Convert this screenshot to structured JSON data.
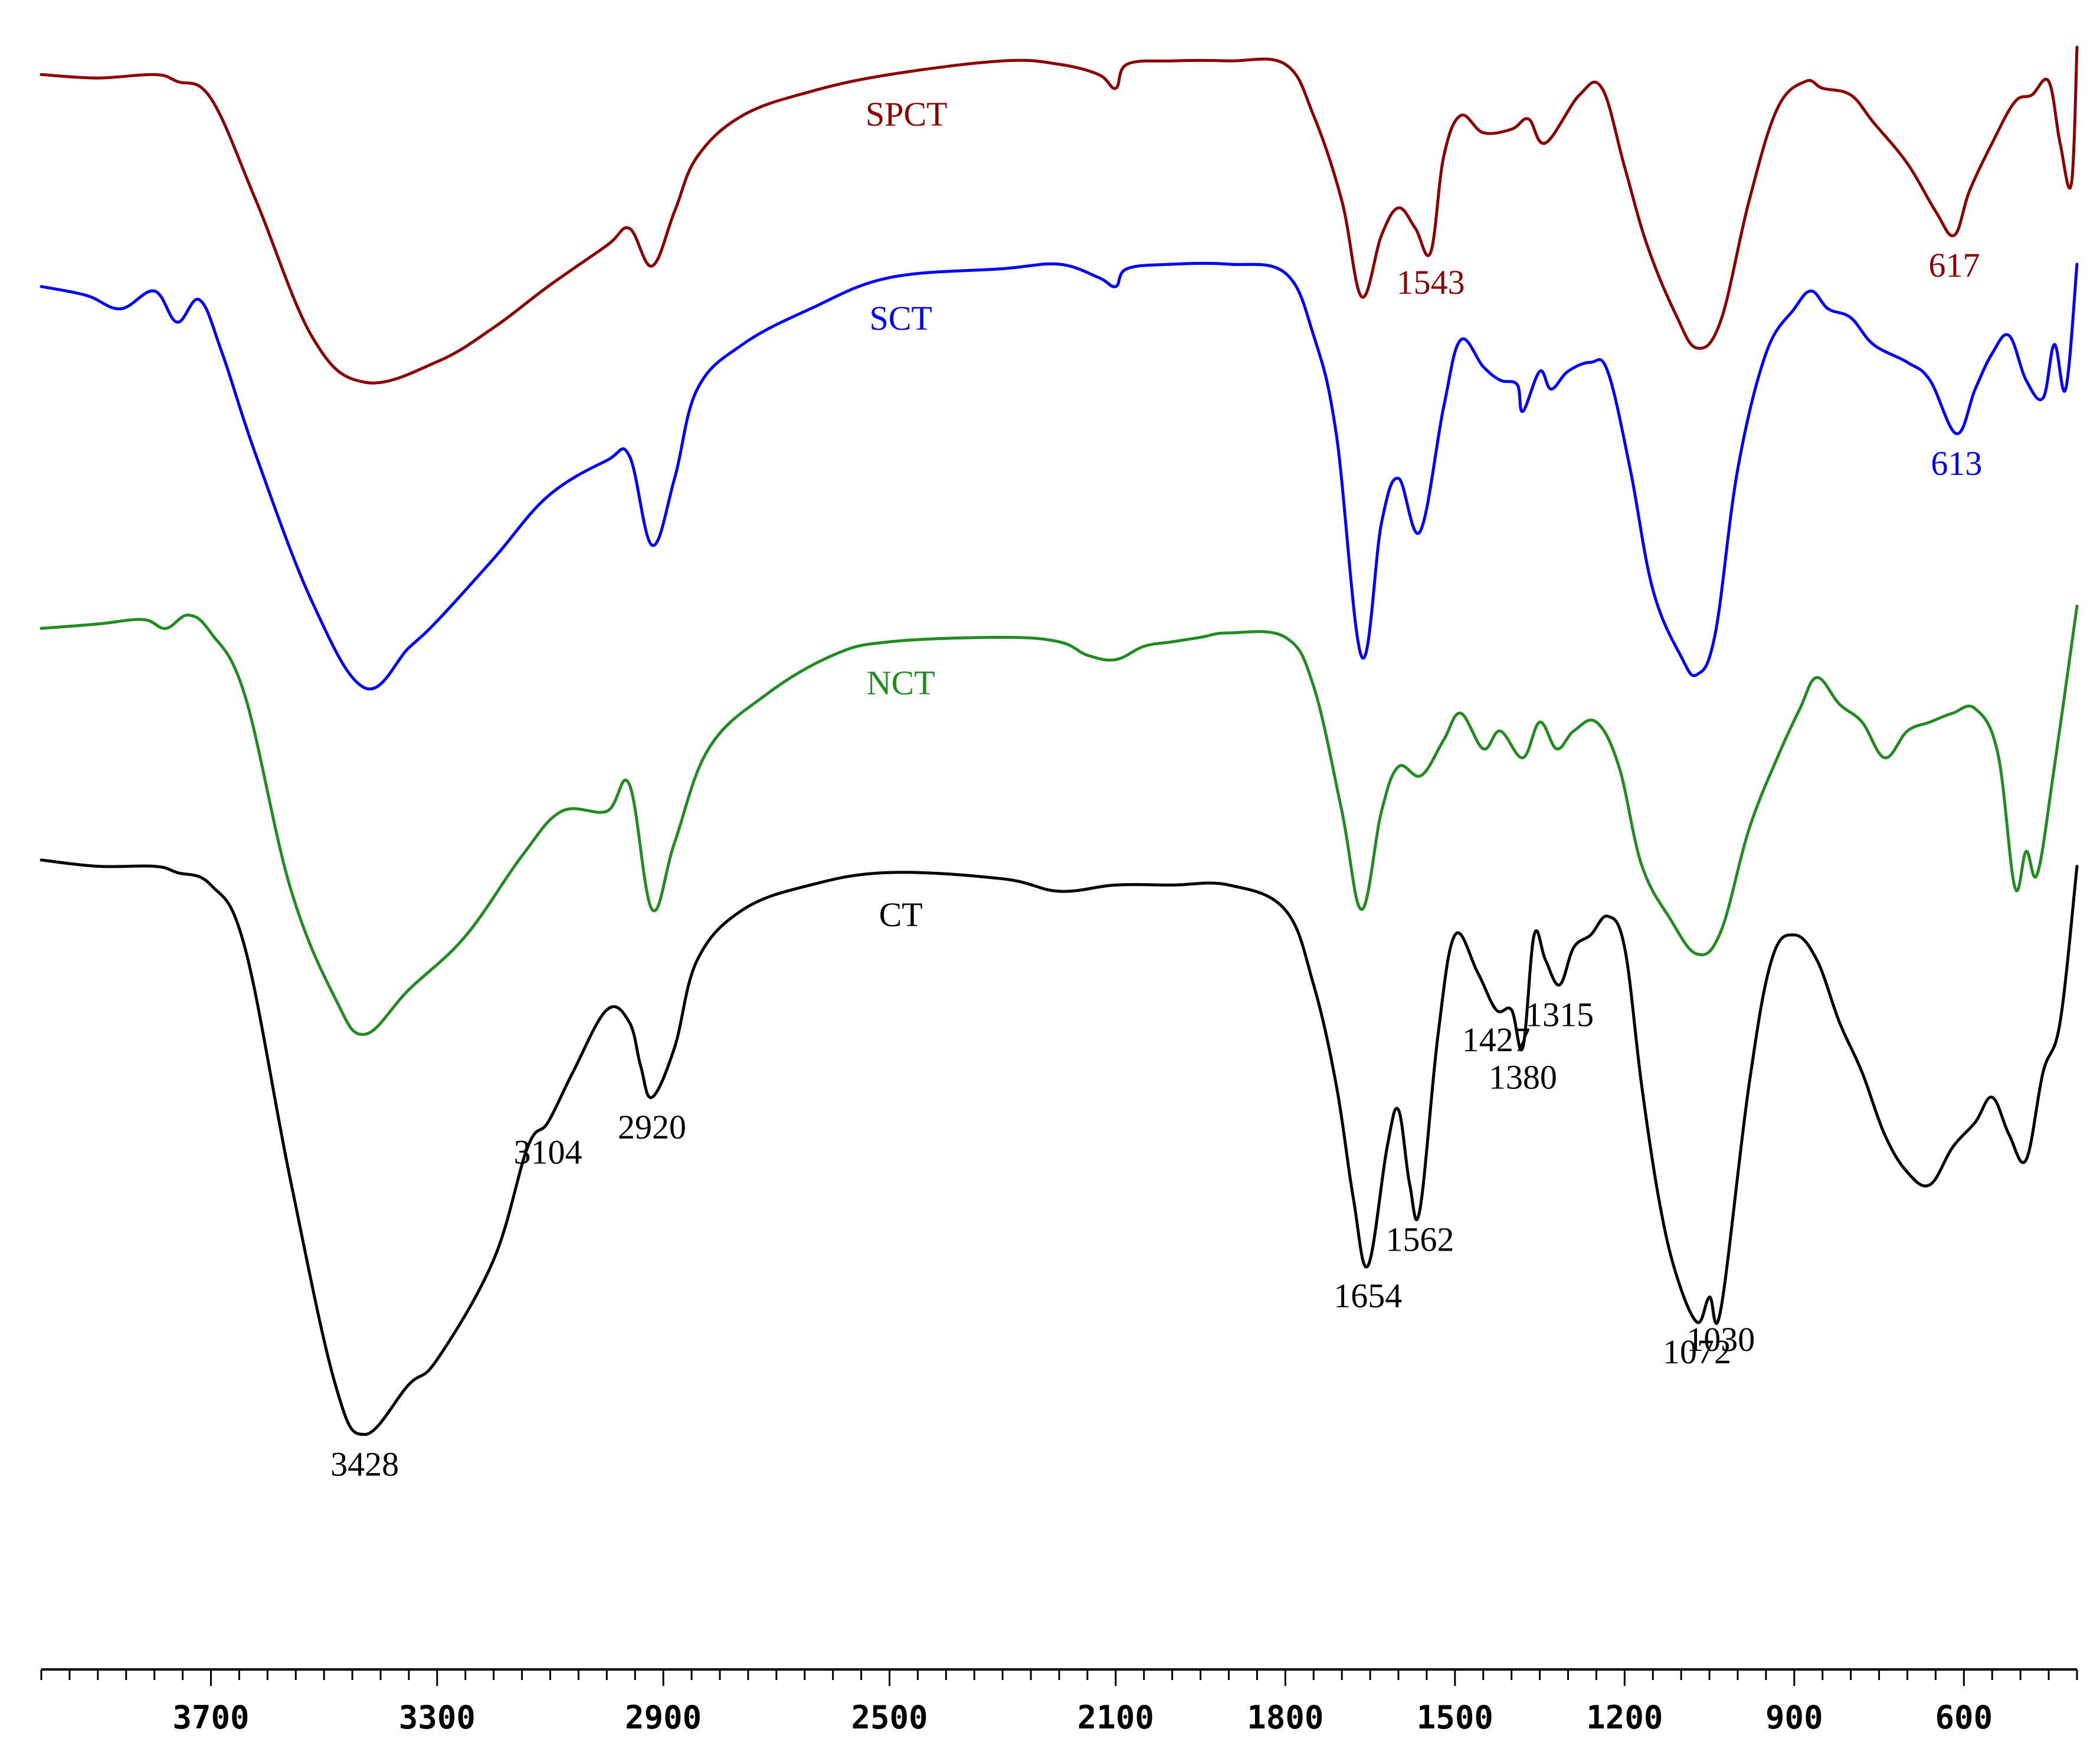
{
  "chart_data": {
    "type": "line",
    "title": "",
    "xlabel": "",
    "ylabel": "",
    "x_axis": {
      "min": 4000,
      "max": 400,
      "reversed": true,
      "ticks": [
        3700,
        3300,
        2900,
        2500,
        2100,
        1800,
        1500,
        1200,
        900,
        600
      ]
    },
    "y_axis": {
      "shown": false,
      "min": 0,
      "max": 1
    },
    "grid": false,
    "series": [
      {
        "name": "SPCT",
        "color": "#8B0000",
        "offset": 0.77,
        "scale": 0.23,
        "peak_labels": [
          1543,
          617
        ],
        "points": [
          [
            4000,
            0.92
          ],
          [
            3900,
            0.91
          ],
          [
            3800,
            0.92
          ],
          [
            3760,
            0.9
          ],
          [
            3700,
            0.85
          ],
          [
            3620,
            0.55
          ],
          [
            3520,
            0.15
          ],
          [
            3428,
            0.02
          ],
          [
            3300,
            0.08
          ],
          [
            3200,
            0.18
          ],
          [
            3104,
            0.3
          ],
          [
            3000,
            0.42
          ],
          [
            2960,
            0.47
          ],
          [
            2920,
            0.36
          ],
          [
            2880,
            0.52
          ],
          [
            2840,
            0.68
          ],
          [
            2760,
            0.8
          ],
          [
            2640,
            0.87
          ],
          [
            2500,
            0.92
          ],
          [
            2300,
            0.96
          ],
          [
            2200,
            0.95
          ],
          [
            2130,
            0.92
          ],
          [
            2100,
            0.88
          ],
          [
            2080,
            0.95
          ],
          [
            2000,
            0.96
          ],
          [
            1900,
            0.96
          ],
          [
            1800,
            0.95
          ],
          [
            1750,
            0.8
          ],
          [
            1700,
            0.55
          ],
          [
            1665,
            0.27
          ],
          [
            1630,
            0.45
          ],
          [
            1600,
            0.53
          ],
          [
            1570,
            0.47
          ],
          [
            1543,
            0.4
          ],
          [
            1520,
            0.68
          ],
          [
            1490,
            0.8
          ],
          [
            1450,
            0.75
          ],
          [
            1400,
            0.76
          ],
          [
            1370,
            0.79
          ],
          [
            1340,
            0.72
          ],
          [
            1280,
            0.86
          ],
          [
            1240,
            0.88
          ],
          [
            1200,
            0.65
          ],
          [
            1160,
            0.42
          ],
          [
            1110,
            0.22
          ],
          [
            1072,
            0.12
          ],
          [
            1030,
            0.2
          ],
          [
            980,
            0.55
          ],
          [
            930,
            0.82
          ],
          [
            880,
            0.9
          ],
          [
            850,
            0.88
          ],
          [
            800,
            0.86
          ],
          [
            760,
            0.78
          ],
          [
            700,
            0.66
          ],
          [
            650,
            0.52
          ],
          [
            617,
            0.45
          ],
          [
            590,
            0.58
          ],
          [
            550,
            0.72
          ],
          [
            510,
            0.84
          ],
          [
            480,
            0.86
          ],
          [
            450,
            0.9
          ],
          [
            430,
            0.72
          ],
          [
            410,
            0.6
          ],
          [
            400,
            1.0
          ]
        ]
      },
      {
        "name": "SCT",
        "color": "#0000FF",
        "offset": 0.56,
        "scale": 0.3,
        "peak_labels": [
          613
        ],
        "points": [
          [
            4000,
            0.93
          ],
          [
            3920,
            0.91
          ],
          [
            3860,
            0.88
          ],
          [
            3800,
            0.92
          ],
          [
            3760,
            0.85
          ],
          [
            3720,
            0.9
          ],
          [
            3680,
            0.78
          ],
          [
            3620,
            0.55
          ],
          [
            3520,
            0.22
          ],
          [
            3428,
            0.03
          ],
          [
            3350,
            0.12
          ],
          [
            3300,
            0.18
          ],
          [
            3200,
            0.32
          ],
          [
            3104,
            0.46
          ],
          [
            3000,
            0.54
          ],
          [
            2960,
            0.55
          ],
          [
            2920,
            0.35
          ],
          [
            2880,
            0.5
          ],
          [
            2840,
            0.7
          ],
          [
            2760,
            0.8
          ],
          [
            2640,
            0.88
          ],
          [
            2500,
            0.95
          ],
          [
            2300,
            0.97
          ],
          [
            2200,
            0.98
          ],
          [
            2130,
            0.95
          ],
          [
            2100,
            0.93
          ],
          [
            2080,
            0.97
          ],
          [
            2000,
            0.98
          ],
          [
            1900,
            0.98
          ],
          [
            1800,
            0.96
          ],
          [
            1750,
            0.82
          ],
          [
            1710,
            0.6
          ],
          [
            1665,
            0.1
          ],
          [
            1630,
            0.4
          ],
          [
            1600,
            0.5
          ],
          [
            1562,
            0.38
          ],
          [
            1520,
            0.66
          ],
          [
            1490,
            0.81
          ],
          [
            1450,
            0.75
          ],
          [
            1420,
            0.72
          ],
          [
            1390,
            0.71
          ],
          [
            1380,
            0.65
          ],
          [
            1350,
            0.74
          ],
          [
            1330,
            0.7
          ],
          [
            1300,
            0.74
          ],
          [
            1260,
            0.76
          ],
          [
            1230,
            0.74
          ],
          [
            1190,
            0.52
          ],
          [
            1150,
            0.25
          ],
          [
            1100,
            0.1
          ],
          [
            1072,
            0.06
          ],
          [
            1040,
            0.15
          ],
          [
            1000,
            0.52
          ],
          [
            950,
            0.78
          ],
          [
            900,
            0.88
          ],
          [
            870,
            0.92
          ],
          [
            840,
            0.88
          ],
          [
            800,
            0.86
          ],
          [
            760,
            0.8
          ],
          [
            700,
            0.76
          ],
          [
            660,
            0.72
          ],
          [
            613,
            0.6
          ],
          [
            580,
            0.7
          ],
          [
            550,
            0.78
          ],
          [
            520,
            0.82
          ],
          [
            490,
            0.72
          ],
          [
            460,
            0.68
          ],
          [
            440,
            0.8
          ],
          [
            420,
            0.7
          ],
          [
            400,
            0.98
          ]
        ]
      },
      {
        "name": "NCT",
        "color": "#228B22",
        "offset": 0.33,
        "scale": 0.3,
        "peak_labels": [],
        "points": [
          [
            4000,
            0.93
          ],
          [
            3900,
            0.94
          ],
          [
            3820,
            0.95
          ],
          [
            3780,
            0.93
          ],
          [
            3740,
            0.96
          ],
          [
            3700,
            0.92
          ],
          [
            3640,
            0.78
          ],
          [
            3560,
            0.35
          ],
          [
            3480,
            0.1
          ],
          [
            3428,
            0.02
          ],
          [
            3350,
            0.12
          ],
          [
            3250,
            0.24
          ],
          [
            3150,
            0.42
          ],
          [
            3080,
            0.52
          ],
          [
            3000,
            0.52
          ],
          [
            2960,
            0.58
          ],
          [
            2920,
            0.3
          ],
          [
            2880,
            0.45
          ],
          [
            2820,
            0.66
          ],
          [
            2720,
            0.78
          ],
          [
            2600,
            0.87
          ],
          [
            2500,
            0.9
          ],
          [
            2300,
            0.91
          ],
          [
            2200,
            0.9
          ],
          [
            2150,
            0.87
          ],
          [
            2100,
            0.86
          ],
          [
            2050,
            0.89
          ],
          [
            2000,
            0.9
          ],
          [
            1950,
            0.91
          ],
          [
            1900,
            0.92
          ],
          [
            1800,
            0.91
          ],
          [
            1750,
            0.8
          ],
          [
            1700,
            0.52
          ],
          [
            1665,
            0.3
          ],
          [
            1630,
            0.52
          ],
          [
            1600,
            0.62
          ],
          [
            1560,
            0.6
          ],
          [
            1520,
            0.68
          ],
          [
            1490,
            0.74
          ],
          [
            1450,
            0.66
          ],
          [
            1420,
            0.7
          ],
          [
            1380,
            0.64
          ],
          [
            1350,
            0.72
          ],
          [
            1320,
            0.66
          ],
          [
            1290,
            0.7
          ],
          [
            1250,
            0.72
          ],
          [
            1210,
            0.62
          ],
          [
            1170,
            0.4
          ],
          [
            1120,
            0.28
          ],
          [
            1072,
            0.2
          ],
          [
            1030,
            0.25
          ],
          [
            980,
            0.48
          ],
          [
            930,
            0.64
          ],
          [
            890,
            0.75
          ],
          [
            860,
            0.82
          ],
          [
            820,
            0.76
          ],
          [
            780,
            0.72
          ],
          [
            740,
            0.64
          ],
          [
            700,
            0.7
          ],
          [
            660,
            0.72
          ],
          [
            620,
            0.74
          ],
          [
            580,
            0.75
          ],
          [
            540,
            0.65
          ],
          [
            510,
            0.35
          ],
          [
            490,
            0.43
          ],
          [
            470,
            0.38
          ],
          [
            440,
            0.62
          ],
          [
            400,
            0.98
          ]
        ]
      },
      {
        "name": "CT",
        "color": "#000000",
        "offset": 0.05,
        "scale": 0.42,
        "peak_labels": [
          3428,
          3104,
          2920,
          1654,
          1562,
          1427,
          1380,
          1315,
          1072,
          1030
        ],
        "points": [
          [
            4000,
            0.96
          ],
          [
            3900,
            0.95
          ],
          [
            3800,
            0.95
          ],
          [
            3760,
            0.94
          ],
          [
            3700,
            0.92
          ],
          [
            3640,
            0.82
          ],
          [
            3560,
            0.45
          ],
          [
            3480,
            0.12
          ],
          [
            3428,
            0.04
          ],
          [
            3350,
            0.12
          ],
          [
            3300,
            0.16
          ],
          [
            3200,
            0.32
          ],
          [
            3140,
            0.5
          ],
          [
            3104,
            0.54
          ],
          [
            3060,
            0.62
          ],
          [
            3000,
            0.72
          ],
          [
            2960,
            0.7
          ],
          [
            2940,
            0.63
          ],
          [
            2920,
            0.58
          ],
          [
            2880,
            0.66
          ],
          [
            2840,
            0.8
          ],
          [
            2760,
            0.88
          ],
          [
            2640,
            0.92
          ],
          [
            2500,
            0.94
          ],
          [
            2300,
            0.93
          ],
          [
            2200,
            0.91
          ],
          [
            2100,
            0.92
          ],
          [
            2000,
            0.92
          ],
          [
            1900,
            0.92
          ],
          [
            1800,
            0.88
          ],
          [
            1750,
            0.76
          ],
          [
            1710,
            0.6
          ],
          [
            1680,
            0.42
          ],
          [
            1654,
            0.31
          ],
          [
            1620,
            0.5
          ],
          [
            1600,
            0.56
          ],
          [
            1580,
            0.44
          ],
          [
            1562,
            0.4
          ],
          [
            1530,
            0.68
          ],
          [
            1500,
            0.84
          ],
          [
            1460,
            0.78
          ],
          [
            1427,
            0.72
          ],
          [
            1400,
            0.72
          ],
          [
            1380,
            0.66
          ],
          [
            1360,
            0.84
          ],
          [
            1340,
            0.8
          ],
          [
            1315,
            0.76
          ],
          [
            1290,
            0.82
          ],
          [
            1260,
            0.84
          ],
          [
            1230,
            0.87
          ],
          [
            1200,
            0.82
          ],
          [
            1170,
            0.6
          ],
          [
            1140,
            0.42
          ],
          [
            1110,
            0.3
          ],
          [
            1072,
            0.22
          ],
          [
            1050,
            0.26
          ],
          [
            1030,
            0.24
          ],
          [
            980,
            0.6
          ],
          [
            940,
            0.8
          ],
          [
            900,
            0.84
          ],
          [
            860,
            0.8
          ],
          [
            820,
            0.7
          ],
          [
            780,
            0.62
          ],
          [
            740,
            0.52
          ],
          [
            700,
            0.46
          ],
          [
            660,
            0.44
          ],
          [
            620,
            0.5
          ],
          [
            580,
            0.54
          ],
          [
            550,
            0.58
          ],
          [
            520,
            0.52
          ],
          [
            490,
            0.48
          ],
          [
            460,
            0.62
          ],
          [
            430,
            0.7
          ],
          [
            400,
            0.95
          ]
        ]
      }
    ],
    "annotations": [
      {
        "series": "SPCT",
        "text": "SPCT",
        "x": 2470
      },
      {
        "series": "SCT",
        "text": "SCT",
        "x": 2480
      },
      {
        "series": "NCT",
        "text": "NCT",
        "x": 2480
      },
      {
        "series": "CT",
        "text": "CT",
        "x": 2480
      }
    ]
  }
}
